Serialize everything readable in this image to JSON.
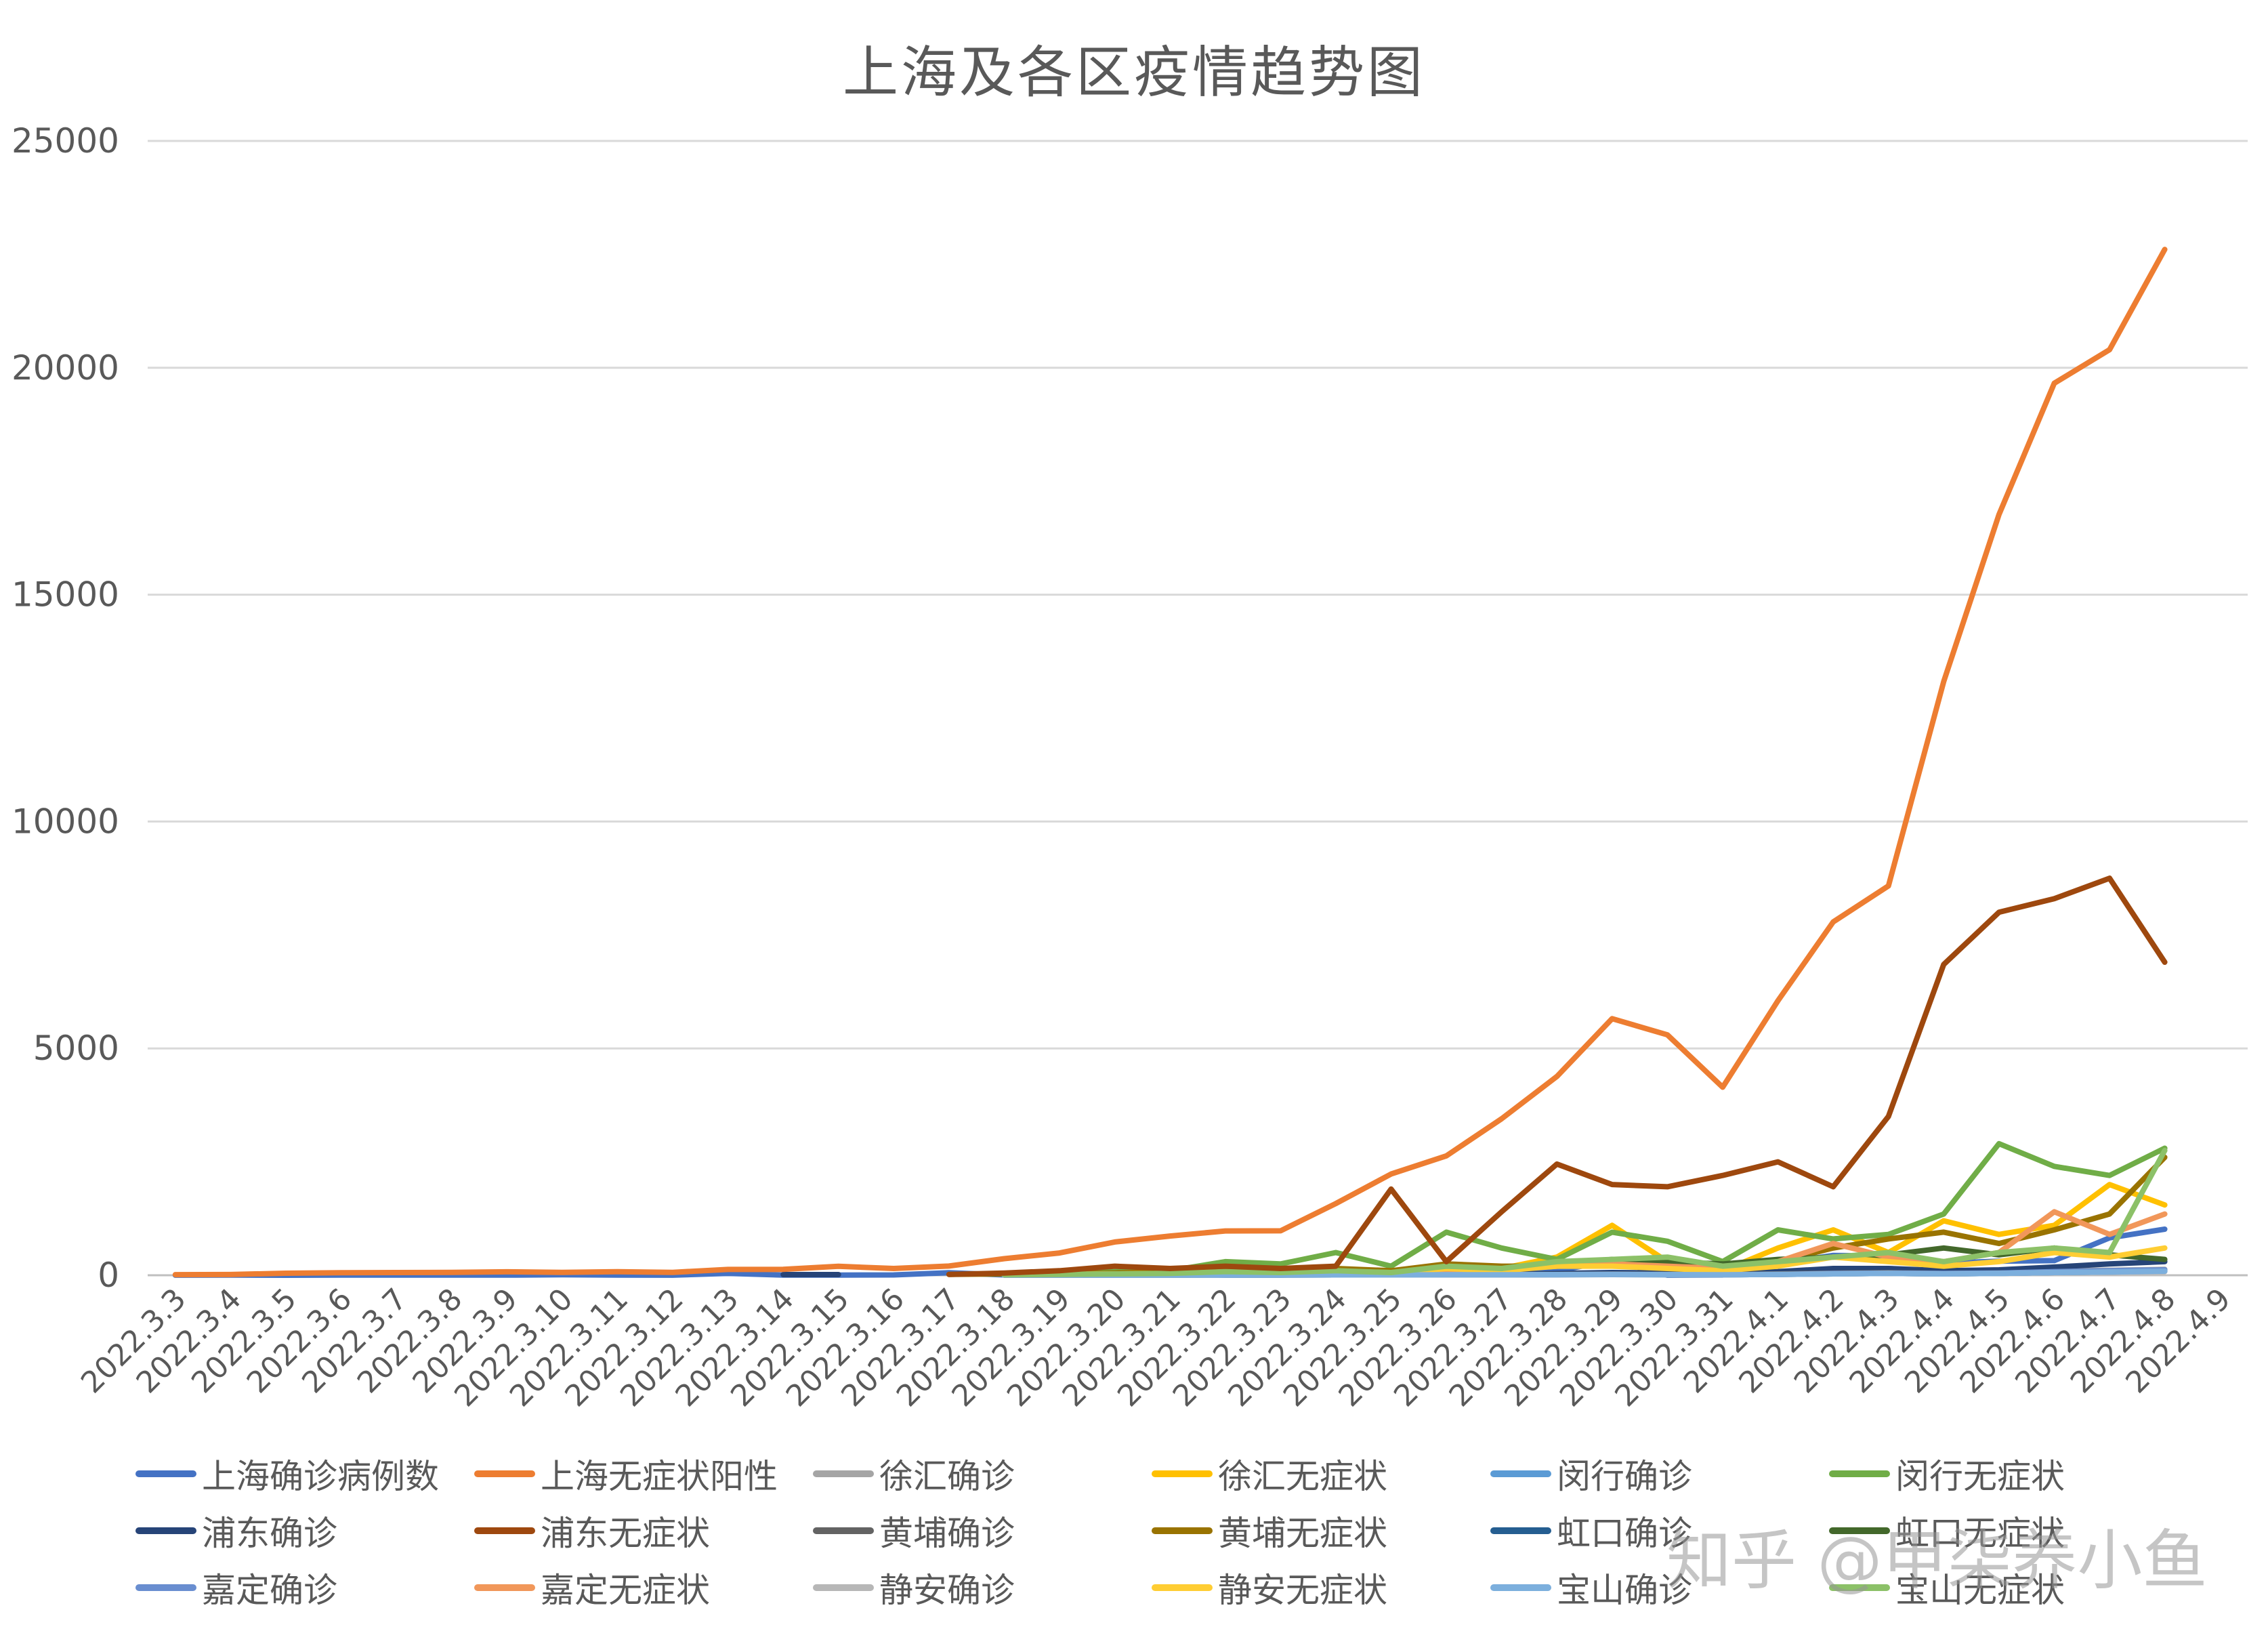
{
  "chart_data": {
    "type": "line",
    "title": "上海及各区疫情趋势图",
    "xlabel": "",
    "ylabel": "",
    "ylim": [
      0,
      25000
    ],
    "yticks": [
      0,
      5000,
      10000,
      15000,
      20000,
      25000
    ],
    "grid": true,
    "legend_position": "bottom",
    "categories": [
      "2022.3.3",
      "2022.3.4",
      "2022.3.5",
      "2022.3.6",
      "2022.3.7",
      "2022.3.8",
      "2022.3.9",
      "2022.3.10",
      "2022.3.11",
      "2022.3.12",
      "2022.3.13",
      "2022.3.14",
      "2022.3.15",
      "2022.3.16",
      "2022.3.17",
      "2022.3.18",
      "2022.3.19",
      "2022.3.20",
      "2022.3.21",
      "2022.3.22",
      "2022.3.23",
      "2022.3.24",
      "2022.3.25",
      "2022.3.26",
      "2022.3.27",
      "2022.3.28",
      "2022.3.29",
      "2022.3.30",
      "2022.3.31",
      "2022.4.1",
      "2022.4.2",
      "2022.4.3",
      "2022.4.4",
      "2022.4.5",
      "2022.4.6",
      "2022.4.7",
      "2022.4.8",
      "2022.4.9"
    ],
    "series": [
      {
        "name": "上海确诊病例数",
        "color": "#4472C4",
        "values": [
          2,
          3,
          0,
          3,
          3,
          4,
          3,
          11,
          5,
          1,
          41,
          5,
          5,
          8,
          57,
          8,
          24,
          24,
          31,
          4,
          4,
          29,
          38,
          45,
          50,
          96,
          326,
          5,
          6,
          260,
          438,
          425,
          268,
          311,
          322,
          824,
          1015,
          null
        ]
      },
      {
        "name": "上海无症状阳性",
        "color": "#ED7D31",
        "values": [
          14,
          16,
          45,
          55,
          59,
          62,
          76,
          64,
          78,
          64,
          128,
          130,
          197,
          150,
          203,
          366,
          492,
          734,
          865,
          977,
          979,
          1580,
          2231,
          2631,
          3450,
          4381,
          5656,
          5298,
          4144,
          6051,
          7788,
          8581,
          13086,
          16766,
          19660,
          20398,
          22609,
          null
        ]
      },
      {
        "name": "徐汇确诊",
        "color": "#A5A5A5",
        "values": [
          null,
          null,
          null,
          null,
          null,
          null,
          null,
          null,
          null,
          null,
          null,
          null,
          null,
          null,
          null,
          5,
          6,
          6,
          10,
          12,
          10,
          15,
          20,
          20,
          25,
          35,
          50,
          40,
          30,
          60,
          80,
          90,
          70,
          80,
          100,
          110,
          130,
          null
        ]
      },
      {
        "name": "徐汇无症状",
        "color": "#FFC000",
        "values": [
          null,
          null,
          null,
          null,
          null,
          null,
          null,
          null,
          null,
          null,
          null,
          null,
          null,
          null,
          null,
          20,
          25,
          20,
          40,
          60,
          50,
          80,
          100,
          180,
          150,
          400,
          1100,
          300,
          100,
          600,
          1000,
          500,
          1200,
          900,
          1100,
          2000,
          1550,
          null
        ]
      },
      {
        "name": "闵行确诊",
        "color": "#5B9BD5",
        "values": [
          null,
          null,
          null,
          null,
          null,
          null,
          null,
          null,
          null,
          null,
          null,
          null,
          null,
          null,
          null,
          3,
          3,
          5,
          5,
          6,
          6,
          8,
          10,
          10,
          12,
          15,
          20,
          15,
          10,
          20,
          30,
          40,
          30,
          40,
          60,
          80,
          100,
          null
        ]
      },
      {
        "name": "闵行无症状",
        "color": "#70AD47",
        "values": [
          null,
          null,
          null,
          null,
          null,
          null,
          null,
          null,
          null,
          null,
          null,
          null,
          null,
          null,
          null,
          40,
          60,
          80,
          100,
          300,
          250,
          500,
          200,
          950,
          600,
          350,
          950,
          750,
          300,
          1000,
          800,
          900,
          1350,
          2900,
          2400,
          2200,
          2800,
          null
        ]
      },
      {
        "name": "浦东确诊",
        "color": "#264478",
        "values": [
          null,
          null,
          null,
          null,
          null,
          null,
          null,
          null,
          null,
          null,
          null,
          15,
          15,
          null,
          null,
          10,
          10,
          10,
          15,
          15,
          15,
          20,
          20,
          25,
          30,
          40,
          60,
          50,
          40,
          80,
          150,
          150,
          100,
          120,
          180,
          250,
          300,
          null
        ]
      },
      {
        "name": "浦东无症状",
        "color": "#9E480E",
        "values": [
          null,
          null,
          null,
          null,
          null,
          null,
          null,
          null,
          null,
          null,
          null,
          null,
          null,
          null,
          20,
          50,
          100,
          200,
          150,
          200,
          150,
          200,
          1900,
          300,
          1400,
          2450,
          2000,
          1950,
          2200,
          2500,
          1950,
          3500,
          6850,
          8000,
          8300,
          8750,
          6900,
          null
        ]
      },
      {
        "name": "黄埔确诊",
        "color": "#636363",
        "values": [
          null,
          null,
          null,
          null,
          null,
          null,
          null,
          null,
          null,
          null,
          null,
          null,
          null,
          null,
          null,
          5,
          5,
          5,
          8,
          8,
          10,
          10,
          12,
          15,
          15,
          20,
          25,
          20,
          15,
          30,
          50,
          60,
          40,
          50,
          70,
          80,
          100,
          null
        ]
      },
      {
        "name": "黄埔无症状",
        "color": "#997300",
        "values": [
          null,
          null,
          null,
          null,
          null,
          null,
          null,
          null,
          null,
          null,
          null,
          null,
          null,
          null,
          20,
          30,
          30,
          50,
          80,
          150,
          120,
          150,
          100,
          250,
          200,
          200,
          300,
          200,
          150,
          300,
          600,
          800,
          950,
          700,
          1000,
          1350,
          2600,
          null
        ]
      },
      {
        "name": "虹口确诊",
        "color": "#255E91",
        "values": [
          null,
          null,
          null,
          null,
          null,
          null,
          null,
          null,
          null,
          null,
          null,
          null,
          null,
          null,
          null,
          3,
          3,
          4,
          5,
          6,
          6,
          8,
          8,
          10,
          10,
          12,
          15,
          12,
          10,
          20,
          30,
          40,
          30,
          40,
          60,
          70,
          90,
          null
        ]
      },
      {
        "name": "虹口无症状",
        "color": "#43682B",
        "values": [
          null,
          null,
          null,
          null,
          null,
          null,
          null,
          null,
          null,
          null,
          null,
          null,
          null,
          null,
          null,
          10,
          20,
          30,
          40,
          60,
          50,
          80,
          60,
          150,
          150,
          250,
          350,
          300,
          250,
          350,
          400,
          450,
          600,
          450,
          600,
          450,
          350,
          null
        ]
      },
      {
        "name": "嘉定确诊",
        "color": "#698ED0",
        "values": [
          null,
          null,
          null,
          null,
          null,
          null,
          null,
          null,
          null,
          null,
          null,
          null,
          null,
          null,
          null,
          3,
          3,
          4,
          5,
          6,
          6,
          8,
          8,
          10,
          10,
          15,
          20,
          15,
          10,
          20,
          40,
          50,
          40,
          50,
          80,
          100,
          120,
          null
        ]
      },
      {
        "name": "嘉定无症状",
        "color": "#F1975A",
        "values": [
          null,
          null,
          null,
          null,
          null,
          null,
          null,
          null,
          null,
          null,
          null,
          null,
          null,
          null,
          null,
          10,
          20,
          30,
          40,
          60,
          50,
          80,
          60,
          120,
          120,
          200,
          250,
          200,
          150,
          300,
          700,
          400,
          300,
          500,
          1400,
          900,
          1350,
          null
        ]
      },
      {
        "name": "静安确诊",
        "color": "#B7B7B7",
        "values": [
          null,
          null,
          null,
          null,
          null,
          null,
          null,
          null,
          null,
          null,
          null,
          null,
          null,
          null,
          null,
          3,
          3,
          4,
          5,
          6,
          6,
          8,
          8,
          10,
          10,
          15,
          20,
          15,
          10,
          20,
          30,
          40,
          30,
          40,
          60,
          70,
          80,
          null
        ]
      },
      {
        "name": "静安无症状",
        "color": "#FFCD33",
        "values": [
          null,
          null,
          null,
          null,
          null,
          null,
          null,
          null,
          null,
          null,
          null,
          null,
          null,
          null,
          null,
          10,
          20,
          30,
          40,
          60,
          50,
          80,
          50,
          150,
          100,
          200,
          200,
          150,
          100,
          200,
          400,
          300,
          200,
          300,
          500,
          400,
          600,
          null
        ]
      },
      {
        "name": "宝山确诊",
        "color": "#7CAFDD",
        "values": [
          null,
          null,
          null,
          null,
          null,
          null,
          null,
          null,
          null,
          null,
          null,
          null,
          null,
          null,
          null,
          3,
          3,
          4,
          5,
          6,
          6,
          8,
          8,
          10,
          10,
          15,
          20,
          15,
          10,
          20,
          30,
          40,
          30,
          40,
          60,
          70,
          90,
          null
        ]
      },
      {
        "name": "宝山无症状",
        "color": "#8CC168",
        "values": [
          null,
          null,
          null,
          null,
          null,
          null,
          null,
          null,
          null,
          null,
          null,
          null,
          null,
          null,
          null,
          10,
          20,
          30,
          40,
          80,
          60,
          100,
          60,
          200,
          150,
          300,
          350,
          400,
          200,
          300,
          400,
          500,
          300,
          500,
          600,
          500,
          2750,
          null
        ]
      }
    ]
  },
  "watermark": "知乎 @甲柒养小鱼"
}
